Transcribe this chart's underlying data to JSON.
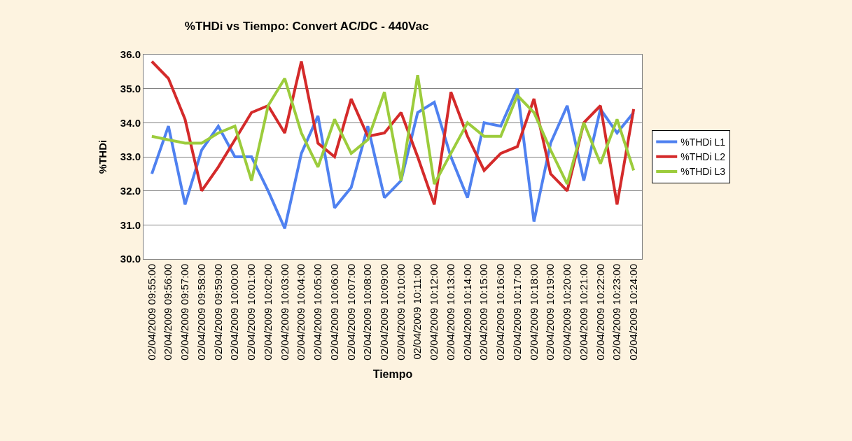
{
  "chart_data": {
    "type": "line",
    "title": "%THDi vs Tiempo: Convert AC/DC - 440Vac",
    "xlabel": "Tiempo",
    "ylabel": "%THDi",
    "categories": [
      "02/04/2009 09:55:00",
      "02/04/2009 09:56:00",
      "02/04/2009 09:57:00",
      "02/04/2009 09:58:00",
      "02/04/2009 09:59:00",
      "02/04/2009 10:00:00",
      "02/04/2009 10:01:00",
      "02/04/2009 10:02:00",
      "02/04/2009 10:03:00",
      "02/04/2009 10:04:00",
      "02/04/2009 10:05:00",
      "02/04/2009 10:06:00",
      "02/04/2009 10:07:00",
      "02/04/2009 10:08:00",
      "02/04/2009 10:09:00",
      "02/04/2009 10:10:00",
      "02/04/2009 10:11:00",
      "02/04/2009 10:12:00",
      "02/04/2009 10:13:00",
      "02/04/2009 10:14:00",
      "02/04/2009 10:15:00",
      "02/04/2009 10:16:00",
      "02/04/2009 10:17:00",
      "02/04/2009 10:18:00",
      "02/04/2009 10:19:00",
      "02/04/2009 10:20:00",
      "02/04/2009 10:21:00",
      "02/04/2009 10:22:00",
      "02/04/2009 10:23:00",
      "02/04/2009 10:24:00"
    ],
    "series": [
      {
        "name": "%THDi L1",
        "color": "#4f81f0",
        "values": [
          32.5,
          33.9,
          31.6,
          33.2,
          33.9,
          33.0,
          33.0,
          32.0,
          30.9,
          33.1,
          34.2,
          31.5,
          32.1,
          33.9,
          31.8,
          32.3,
          34.3,
          34.6,
          33.0,
          31.8,
          34.0,
          33.9,
          35.0,
          31.1,
          33.4,
          34.5,
          32.3,
          34.4,
          33.7,
          34.3
        ]
      },
      {
        "name": "%THDi L2",
        "color": "#d42a2a",
        "values": [
          35.8,
          35.3,
          34.1,
          32.0,
          32.7,
          33.5,
          34.3,
          34.5,
          33.7,
          35.8,
          33.4,
          33.0,
          34.7,
          33.6,
          33.7,
          34.3,
          33.0,
          31.6,
          34.9,
          33.6,
          32.6,
          33.1,
          33.3,
          34.7,
          32.5,
          32.0,
          34.0,
          34.5,
          31.6,
          34.4
        ]
      },
      {
        "name": "%THDi L3",
        "color": "#9ccc3c",
        "values": [
          33.6,
          33.5,
          33.4,
          33.4,
          33.7,
          33.9,
          32.3,
          34.5,
          35.3,
          33.7,
          32.7,
          34.1,
          33.1,
          33.5,
          34.9,
          32.3,
          35.4,
          32.2,
          33.1,
          34.0,
          33.6,
          33.6,
          34.8,
          34.3,
          33.2,
          32.2,
          34.0,
          32.8,
          34.1,
          32.6
        ]
      }
    ],
    "ylim": [
      30,
      36
    ],
    "yticks": [
      {
        "value": 30,
        "label": "30.0"
      },
      {
        "value": 31,
        "label": "31.0"
      },
      {
        "value": 32,
        "label": "32.0"
      },
      {
        "value": 33,
        "label": "33.0"
      },
      {
        "value": 34,
        "label": "34.0"
      },
      {
        "value": 35,
        "label": "35.0"
      },
      {
        "value": 36,
        "label": "36.0"
      }
    ],
    "grid": "y",
    "legend": "right",
    "marker": "none",
    "line_style": "solid"
  }
}
